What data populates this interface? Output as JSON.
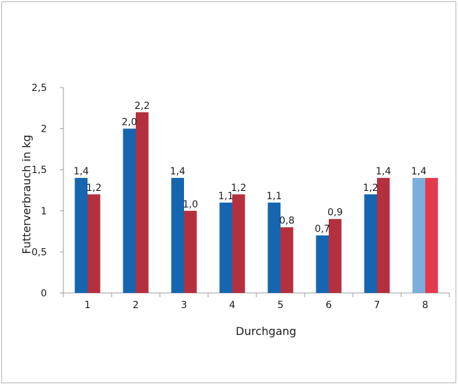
{
  "chart_data": {
    "type": "bar",
    "xlabel": "Durchgang",
    "ylabel": "Futterverbrauch in kg",
    "ylim": [
      0,
      2.5
    ],
    "yticks": [
      "0",
      "0,5",
      "1",
      "1,5",
      "2",
      "2,5"
    ],
    "ytick_values": [
      0,
      0.5,
      1,
      1.5,
      2,
      2.5
    ],
    "categories": [
      "1",
      "2",
      "3",
      "4",
      "5",
      "6",
      "7",
      "8"
    ],
    "series": [
      {
        "color": "#1565b0",
        "values": [
          1.4,
          2.0,
          1.4,
          1.1,
          1.1,
          0.7,
          1.2,
          1.4
        ],
        "labels": [
          "1,4",
          "2,0",
          "1,4",
          "1,1",
          "1,1",
          "0,7",
          "1,2",
          "1,4"
        ]
      },
      {
        "color": "#b5303f",
        "values": [
          1.2,
          2.2,
          1.0,
          1.2,
          0.8,
          0.9,
          1.4,
          1.4
        ],
        "labels": [
          "1,2",
          "2,2",
          "1,0",
          "1,2",
          "0,8",
          "0,9",
          "1,4",
          ""
        ]
      }
    ],
    "highlight": {
      "category_index": 7,
      "colors": [
        "#7aaedc",
        "#e23a4c"
      ]
    },
    "grid": false,
    "legend": "none"
  }
}
